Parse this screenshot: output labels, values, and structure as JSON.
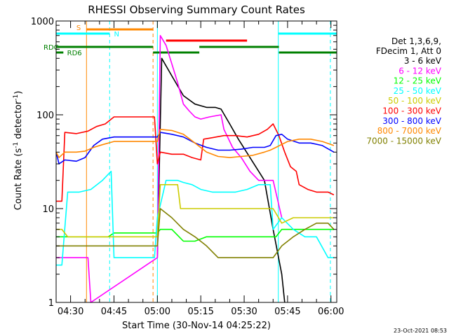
{
  "chart_data": {
    "type": "line",
    "title": "RHESSI Observing Summary Count Rates",
    "xlabel": "Start Time (30-Nov-14 04:25:22)",
    "ylabel_main": "Count Rate (s",
    "ylabel_sup1": "-1",
    "ylabel_mid": " detector",
    "ylabel_sup2": "-1",
    "ylabel_end": ")",
    "y_scale": "log",
    "ylim": [
      1,
      1000
    ],
    "xlim_minutes": [
      0,
      97
    ],
    "xticks": [
      {
        "minute": 5,
        "label": "04:30"
      },
      {
        "minute": 20,
        "label": "04:45"
      },
      {
        "minute": 35,
        "label": "05:00"
      },
      {
        "minute": 50,
        "label": "05:15"
      },
      {
        "minute": 65,
        "label": "05:30"
      },
      {
        "minute": 80,
        "label": "05:45"
      },
      {
        "minute": 95,
        "label": "06:00"
      }
    ],
    "yticks": [
      {
        "value": 1,
        "label": "1"
      },
      {
        "value": 10,
        "label": "10"
      },
      {
        "value": 100,
        "label": "100"
      },
      {
        "value": 1000,
        "label": "1000"
      }
    ],
    "legend_header": [
      "Det 1,3,6,9,",
      "FDecim 1, Att 0"
    ],
    "series": [
      {
        "name": "3 - 6 keV",
        "color": "#000000",
        "points": [
          [
            35,
            3
          ],
          [
            36.5,
            400
          ],
          [
            40,
            260
          ],
          [
            44,
            160
          ],
          [
            48,
            130
          ],
          [
            52,
            120
          ],
          [
            55,
            120
          ],
          [
            57,
            115
          ],
          [
            60,
            80
          ],
          [
            63,
            55
          ],
          [
            67,
            35
          ],
          [
            70,
            25
          ],
          [
            72,
            20
          ],
          [
            75,
            6
          ],
          [
            78,
            2
          ],
          [
            79,
            1
          ]
        ]
      },
      {
        "name": "6 - 12 keV",
        "color": "#ff00ff",
        "points": [
          [
            0,
            3
          ],
          [
            5,
            3
          ],
          [
            10,
            3
          ],
          [
            11,
            3
          ],
          [
            12,
            1
          ],
          [
            35,
            3
          ],
          [
            36,
            700
          ],
          [
            38,
            550
          ],
          [
            40,
            350
          ],
          [
            42,
            220
          ],
          [
            44,
            130
          ],
          [
            46,
            110
          ],
          [
            48,
            95
          ],
          [
            50,
            90
          ],
          [
            53,
            95
          ],
          [
            57,
            100
          ],
          [
            58,
            70
          ],
          [
            61,
            45
          ],
          [
            64,
            35
          ],
          [
            67,
            25
          ],
          [
            70,
            20
          ],
          [
            75,
            20
          ],
          [
            78,
            8
          ]
        ]
      },
      {
        "name": "12 - 25 keV",
        "color": "#00ff00",
        "points": [
          [
            0,
            5
          ],
          [
            5,
            5
          ],
          [
            10,
            5
          ],
          [
            18,
            5
          ],
          [
            20,
            5.5
          ],
          [
            35,
            5.5
          ],
          [
            36,
            6
          ],
          [
            40,
            6
          ],
          [
            44,
            4.5
          ],
          [
            48,
            4.5
          ],
          [
            52,
            5
          ],
          [
            56,
            5
          ],
          [
            60,
            5
          ],
          [
            64,
            5
          ],
          [
            68,
            5
          ],
          [
            72,
            5
          ],
          [
            76,
            5
          ],
          [
            78,
            6
          ],
          [
            80,
            6
          ],
          [
            84,
            6
          ],
          [
            88,
            6
          ],
          [
            92,
            6
          ],
          [
            96,
            6
          ]
        ]
      },
      {
        "name": "25 - 50 keV",
        "color": "#00ffff",
        "points": [
          [
            0,
            2.5
          ],
          [
            2,
            2.5
          ],
          [
            4,
            15
          ],
          [
            8,
            15
          ],
          [
            12,
            16
          ],
          [
            16,
            20
          ],
          [
            19,
            25
          ],
          [
            20,
            3
          ],
          [
            34,
            3
          ],
          [
            35,
            8
          ],
          [
            38,
            20
          ],
          [
            42,
            20
          ],
          [
            44,
            19
          ],
          [
            47,
            18
          ],
          [
            50,
            16
          ],
          [
            54,
            15
          ],
          [
            58,
            15
          ],
          [
            62,
            15
          ],
          [
            66,
            16
          ],
          [
            70,
            18
          ],
          [
            74,
            18
          ],
          [
            75,
            6
          ],
          [
            78,
            8
          ],
          [
            82,
            6
          ],
          [
            86,
            5
          ],
          [
            90,
            5
          ],
          [
            94,
            3
          ],
          [
            96,
            3
          ]
        ]
      },
      {
        "name": "50 - 100 keV",
        "color": "#cccc00",
        "points": [
          [
            0,
            6
          ],
          [
            2,
            6
          ],
          [
            4,
            5
          ],
          [
            10,
            5
          ],
          [
            19,
            5
          ],
          [
            35,
            5
          ],
          [
            36,
            18
          ],
          [
            42,
            18
          ],
          [
            43,
            10
          ],
          [
            48,
            10
          ],
          [
            52,
            10
          ],
          [
            56,
            10
          ],
          [
            60,
            10
          ],
          [
            64,
            10
          ],
          [
            68,
            10
          ],
          [
            72,
            10
          ],
          [
            75,
            10
          ],
          [
            78,
            7
          ],
          [
            82,
            8
          ],
          [
            86,
            8
          ],
          [
            90,
            8
          ],
          [
            94,
            8
          ],
          [
            96,
            8
          ]
        ]
      },
      {
        "name": "100 - 300 keV",
        "color": "#ff0000",
        "points": [
          [
            0,
            12
          ],
          [
            2,
            12
          ],
          [
            3,
            65
          ],
          [
            7,
            63
          ],
          [
            11,
            67
          ],
          [
            14,
            75
          ],
          [
            17,
            80
          ],
          [
            20,
            95
          ],
          [
            34,
            95
          ],
          [
            35,
            30
          ],
          [
            36,
            40
          ],
          [
            40,
            38
          ],
          [
            44,
            38
          ],
          [
            47,
            35
          ],
          [
            50,
            33
          ],
          [
            51,
            55
          ],
          [
            54,
            57
          ],
          [
            58,
            60
          ],
          [
            62,
            60
          ],
          [
            66,
            58
          ],
          [
            70,
            62
          ],
          [
            73,
            70
          ],
          [
            75,
            80
          ],
          [
            77,
            60
          ],
          [
            79,
            40
          ],
          [
            81,
            28
          ],
          [
            83,
            25
          ],
          [
            84,
            18
          ],
          [
            87,
            16
          ],
          [
            90,
            15
          ],
          [
            94,
            15
          ],
          [
            96,
            14
          ]
        ]
      },
      {
        "name": "300 - 800 keV",
        "color": "#0000ff",
        "points": [
          [
            0,
            40
          ],
          [
            1,
            30
          ],
          [
            3,
            33
          ],
          [
            7,
            32
          ],
          [
            10,
            35
          ],
          [
            13,
            47
          ],
          [
            16,
            55
          ],
          [
            20,
            58
          ],
          [
            35,
            58
          ],
          [
            36,
            65
          ],
          [
            40,
            62
          ],
          [
            44,
            58
          ],
          [
            48,
            50
          ],
          [
            52,
            45
          ],
          [
            56,
            42
          ],
          [
            60,
            42
          ],
          [
            64,
            43
          ],
          [
            68,
            45
          ],
          [
            72,
            45
          ],
          [
            74,
            47
          ],
          [
            76,
            60
          ],
          [
            78,
            62
          ],
          [
            80,
            55
          ],
          [
            84,
            50
          ],
          [
            88,
            50
          ],
          [
            92,
            47
          ],
          [
            96,
            40
          ]
        ]
      },
      {
        "name": "800 - 7000 keV",
        "color": "#ff8800",
        "points": [
          [
            0,
            40
          ],
          [
            1,
            35
          ],
          [
            3,
            40
          ],
          [
            7,
            40
          ],
          [
            10,
            41
          ],
          [
            13,
            45
          ],
          [
            16,
            48
          ],
          [
            20,
            52
          ],
          [
            35,
            52
          ],
          [
            36,
            70
          ],
          [
            40,
            68
          ],
          [
            44,
            62
          ],
          [
            48,
            50
          ],
          [
            52,
            40
          ],
          [
            56,
            36
          ],
          [
            60,
            35
          ],
          [
            64,
            36
          ],
          [
            68,
            37
          ],
          [
            72,
            40
          ],
          [
            74,
            42
          ],
          [
            76,
            45
          ],
          [
            80,
            52
          ],
          [
            84,
            55
          ],
          [
            88,
            55
          ],
          [
            92,
            52
          ],
          [
            96,
            47
          ]
        ]
      },
      {
        "name": "7000 - 15000 keV",
        "color": "#808000",
        "points": [
          [
            0,
            4
          ],
          [
            2,
            4
          ],
          [
            4,
            4
          ],
          [
            8,
            4
          ],
          [
            12,
            4
          ],
          [
            16,
            4
          ],
          [
            20,
            4
          ],
          [
            35,
            4
          ],
          [
            36,
            10
          ],
          [
            40,
            8
          ],
          [
            44,
            6
          ],
          [
            48,
            5
          ],
          [
            52,
            4
          ],
          [
            56,
            3
          ],
          [
            60,
            3
          ],
          [
            64,
            3
          ],
          [
            68,
            3
          ],
          [
            72,
            3
          ],
          [
            75,
            3
          ],
          [
            78,
            4
          ],
          [
            82,
            5
          ],
          [
            86,
            6
          ],
          [
            90,
            7
          ],
          [
            94,
            7
          ],
          [
            96,
            6
          ]
        ]
      }
    ],
    "annotations": [
      {
        "label": "S",
        "color": "#ff8800"
      },
      {
        "label": "N",
        "color": "#00ffff"
      },
      {
        "label": "RDC",
        "color": "#008000"
      },
      {
        "label": "RD6",
        "color": "#008000"
      }
    ],
    "footer_date": "23-Oct-2021 08:53"
  }
}
